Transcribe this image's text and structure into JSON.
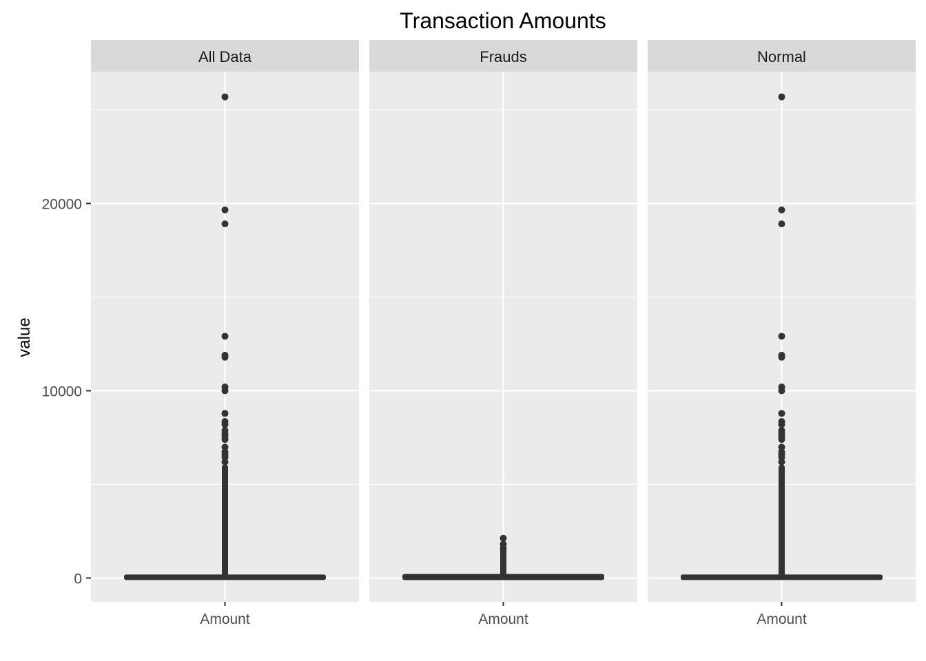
{
  "chart_data": {
    "type": "boxplot",
    "title": "Transaction Amounts",
    "xlabel": "",
    "ylabel": "value",
    "ylim": [
      -1280,
      26400
    ],
    "yticks": [
      0,
      10000,
      20000
    ],
    "grid": true,
    "legend": "none",
    "colors": {
      "panel": "#ebebeb",
      "strip": "#d9d9d9",
      "grid": "#ffffff",
      "mark": "#333333",
      "tick": "#333333"
    },
    "facets": [
      {
        "label": "All Data",
        "categories": [
          "Amount"
        ],
        "box": {
          "min": 0,
          "q1": 5.6,
          "median": 22,
          "q3": 77,
          "max": 185
        },
        "outlier_range": [
          185,
          5900
        ],
        "outliers": [
          25691,
          19656,
          18910,
          12910,
          11898,
          11790,
          10200,
          10000,
          8790,
          8360,
          8200,
          7880,
          7700,
          7560,
          7400,
          6990,
          6730,
          6600,
          6450,
          6200
        ]
      },
      {
        "label": "Frauds",
        "categories": [
          "Amount"
        ],
        "box": {
          "min": 0,
          "q1": 1,
          "median": 9.25,
          "q3": 105.9,
          "max": 262
        },
        "outlier_range": [
          262,
          1500
        ],
        "outliers": [
          2125,
          1810,
          1600
        ]
      },
      {
        "label": "Normal",
        "categories": [
          "Amount"
        ],
        "box": {
          "min": 0,
          "q1": 5.65,
          "median": 22,
          "q3": 77,
          "max": 185
        },
        "outlier_range": [
          185,
          5900
        ],
        "outliers": [
          25691,
          19656,
          18910,
          12910,
          11898,
          11790,
          10200,
          10000,
          8790,
          8360,
          8200,
          7880,
          7700,
          7560,
          7400,
          6990,
          6730,
          6600,
          6450,
          6200
        ]
      }
    ]
  }
}
